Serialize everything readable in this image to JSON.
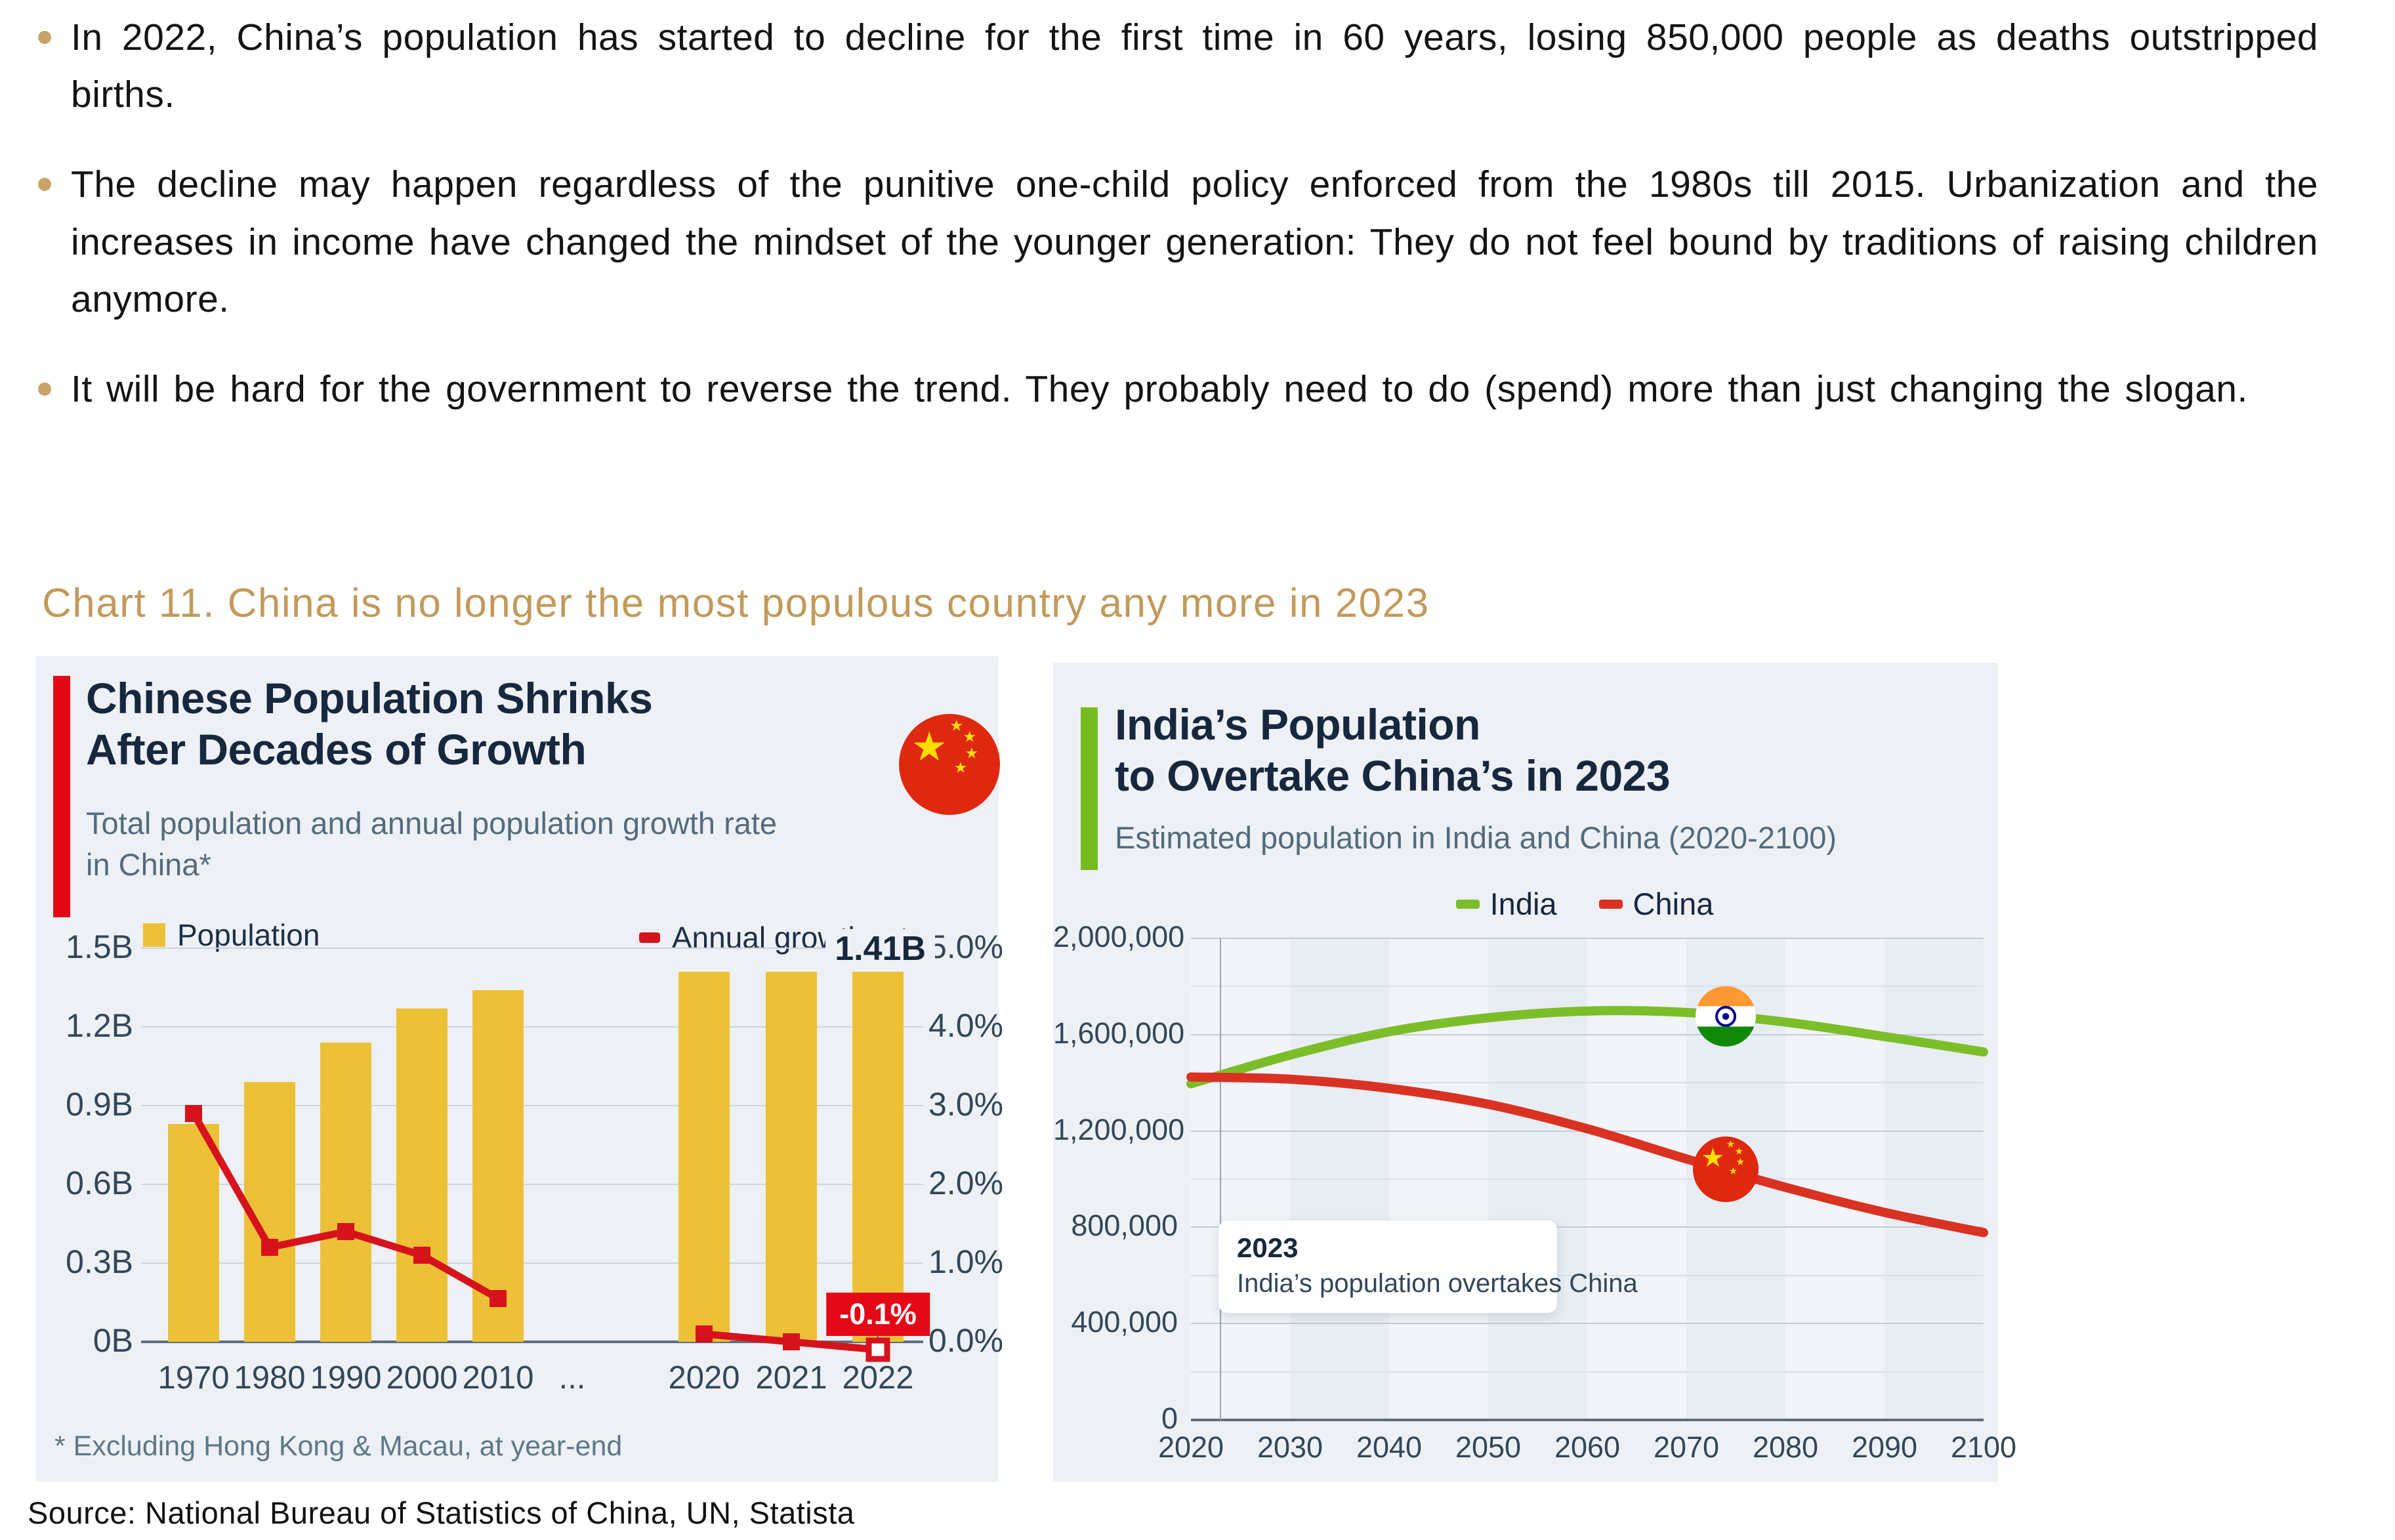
{
  "bullets": {
    "marker_color": "#C9A469",
    "items": [
      "In 2022, China’s population has started to decline for the first time in 60 years, losing 850,000 people as deaths outstripped births.",
      "The decline may happen regardless of the punitive one-child policy enforced from the 1980s till 2015. Urbanization and the increases in income have changed the mindset of the younger generation: They do not feel bound by traditions of raising children anymore.",
      "It will be hard for the government to reverse the trend. They probably need to do (spend) more than just changing the slogan."
    ]
  },
  "section_title": "Chart 11. China is no longer the most populous country any more in 2023",
  "source_line": "Source: National Bureau of Statistics of China, UN, Statista",
  "theme": {
    "gold": "#C29A5C",
    "navy": "#17273E",
    "slate": "#546B7E",
    "panel_bg": "#EDF1F5",
    "statista_yellow": "#ECC137",
    "statista_red": "#D6131C",
    "callout_red": "#E30917",
    "india_green": "#7CBE2A",
    "china_line_red": "#D93222",
    "accent_red": "#E30613",
    "accent_green": "#76BC21"
  },
  "chart_data": [
    {
      "type": "bar",
      "title_lines": [
        "Chinese Population Shrinks",
        "After Decades of Growth"
      ],
      "subtitle_lines": [
        "Total population and annual population growth rate",
        "in China*"
      ],
      "categories": [
        "1970",
        "1980",
        "1990",
        "2000",
        "2010",
        "...",
        "2020",
        "2021",
        "2022"
      ],
      "series": [
        {
          "name": "Population",
          "type": "bar",
          "unit": "billions",
          "color": "#ECC137",
          "values": [
            0.83,
            0.99,
            1.14,
            1.27,
            1.34,
            null,
            1.41,
            1.41,
            1.41
          ]
        },
        {
          "name": "Annual growth rate",
          "type": "line",
          "unit": "%",
          "color": "#D6131C",
          "values": [
            2.9,
            1.2,
            1.4,
            1.1,
            0.55,
            null,
            0.1,
            0.0,
            -0.1
          ]
        }
      ],
      "y_left": {
        "ticks": [
          "1.5B",
          "1.2B",
          "0.9B",
          "0.6B",
          "0.3B",
          "0B"
        ],
        "min": 0,
        "max": 1.5
      },
      "y_right": {
        "ticks": [
          "5.0%",
          "4.0%",
          "3.0%",
          "2.0%",
          "1.0%",
          "0.0%"
        ],
        "min": 0,
        "max": 5
      },
      "annotations": {
        "peak_label": "1.41B",
        "callout_label": "-0.1%"
      },
      "footnote": "* Excluding Hong Kong & Macau, at year-end",
      "grid": true,
      "legend_position": "top"
    },
    {
      "type": "line",
      "title_lines": [
        "India’s Population",
        "to Overtake China’s in 2023"
      ],
      "subtitle": "Estimated population in India and China (2020-2100)",
      "x": [
        2020,
        2030,
        2040,
        2050,
        2060,
        2070,
        2080,
        2090,
        2100
      ],
      "x_ticks": [
        "2020",
        "2030",
        "2040",
        "2050",
        "2060",
        "2070",
        "2080",
        "2090",
        "2100"
      ],
      "series": [
        {
          "name": "India",
          "color": "#7CBE2A",
          "values": [
            1396000,
            1515000,
            1612000,
            1670000,
            1698000,
            1692000,
            1652000,
            1592000,
            1528000
          ]
        },
        {
          "name": "China",
          "color": "#D93222",
          "values": [
            1424000,
            1415000,
            1377000,
            1311000,
            1209000,
            1084000,
            966000,
            862000,
            778000
          ]
        }
      ],
      "ylim": [
        0,
        2000000
      ],
      "y_ticks": [
        "2,000,000",
        "1,600,000",
        "1,200,000",
        "800,000",
        "400,000",
        "0"
      ],
      "grid": true,
      "legend_position": "top",
      "event": {
        "year": 2023,
        "year_label": "2023",
        "text": "India’s population overtakes China"
      },
      "flag_markers": [
        {
          "series": "India",
          "year": 2074,
          "value": 1676000
        },
        {
          "series": "China",
          "year": 2074,
          "value": 1040000
        }
      ]
    }
  ]
}
